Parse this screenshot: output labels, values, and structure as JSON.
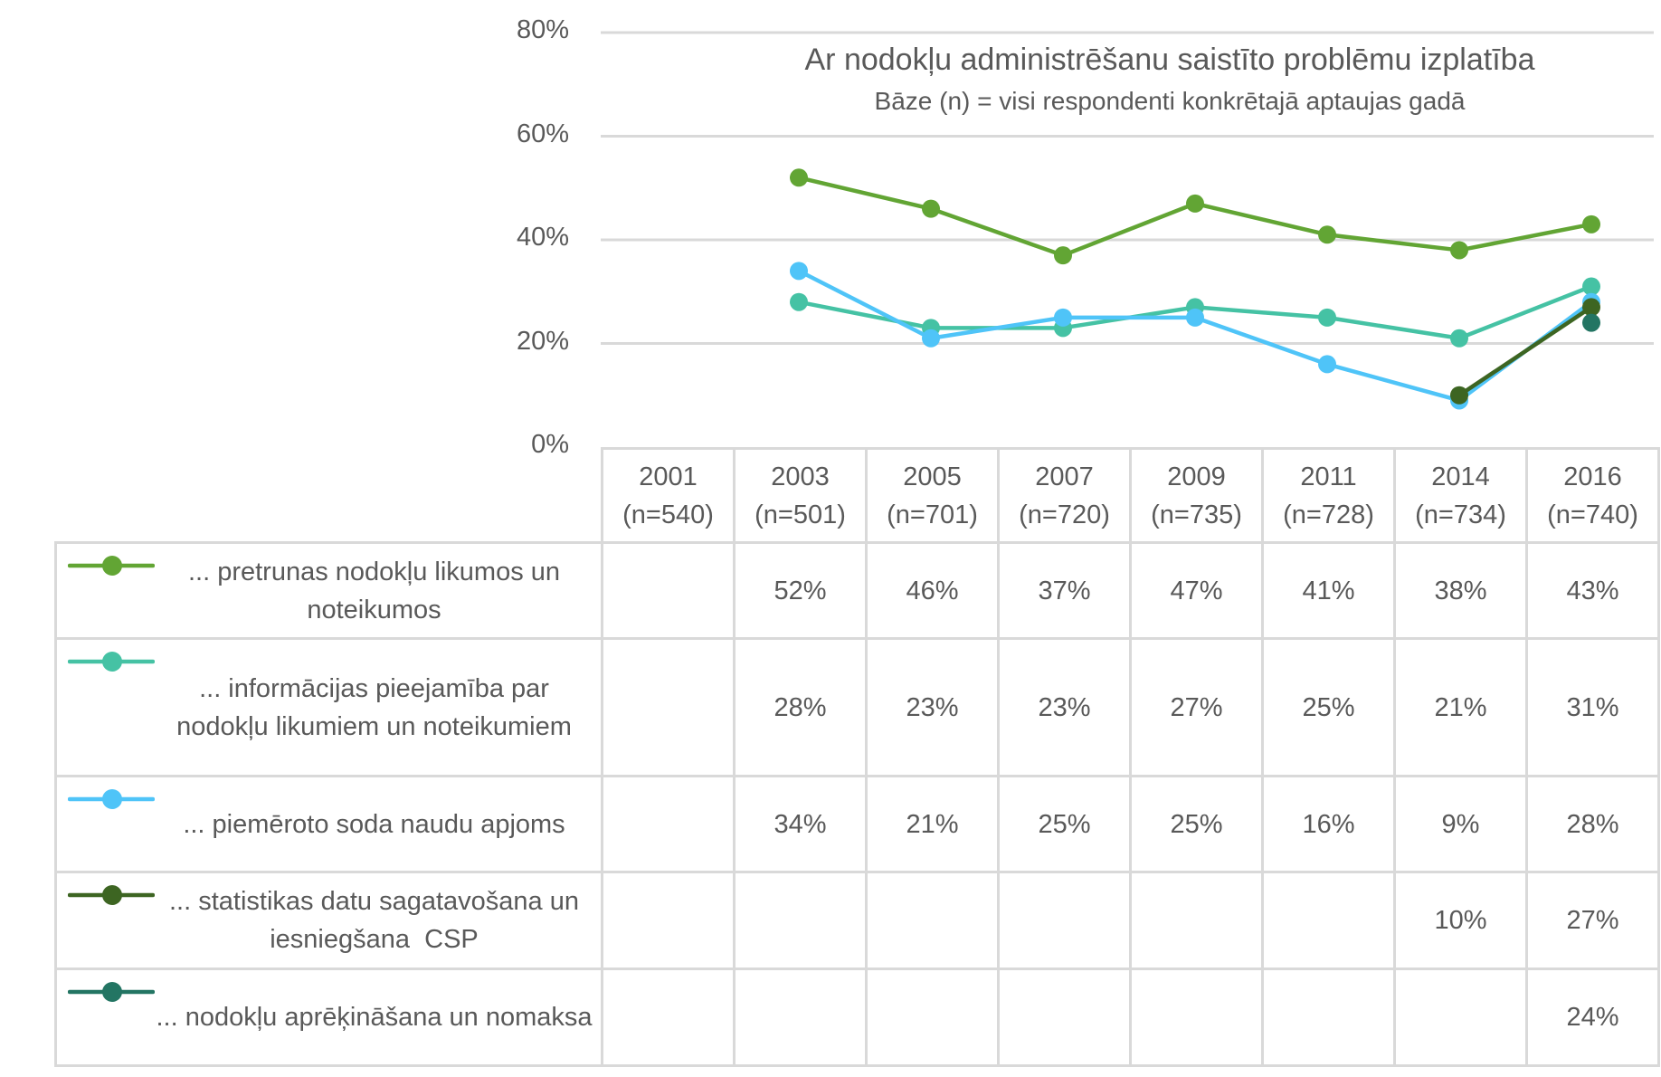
{
  "chart_data": {
    "type": "line",
    "title": "Ar nodokļu administrēšanu saistīto problēmu izplatība",
    "subtitle": "Bāze (n) = visi respondenti konkrētajā aptaujas gadā",
    "xlabel": "",
    "ylabel": "",
    "ylim": [
      0,
      80
    ],
    "yticks": [
      "0%",
      "20%",
      "40%",
      "60%",
      "80%"
    ],
    "ytick_values": [
      0,
      20,
      40,
      60,
      80
    ],
    "grid": true,
    "legend_placement": "data-table",
    "categories": [
      {
        "year": "2001",
        "n": "(n=540)"
      },
      {
        "year": "2003",
        "n": "(n=501)"
      },
      {
        "year": "2005",
        "n": "(n=701)"
      },
      {
        "year": "2007",
        "n": "(n=720)"
      },
      {
        "year": "2009",
        "n": "(n=735)"
      },
      {
        "year": "2011",
        "n": "(n=728)"
      },
      {
        "year": "2014",
        "n": "(n=734)"
      },
      {
        "year": "2016",
        "n": "(n=740)"
      }
    ],
    "series": [
      {
        "name": "... pretrunas nodokļu likumos un noteikumos",
        "color": "#62a534",
        "values": [
          null,
          52,
          46,
          37,
          47,
          41,
          38,
          43
        ],
        "labels": [
          "",
          "52%",
          "46%",
          "37%",
          "47%",
          "41%",
          "38%",
          "43%"
        ]
      },
      {
        "name": "... informācijas pieejamība par nodokļu likumiem un noteikumiem",
        "color": "#45c2a4",
        "values": [
          null,
          28,
          23,
          23,
          27,
          25,
          21,
          31
        ],
        "labels": [
          "",
          "28%",
          "23%",
          "23%",
          "27%",
          "25%",
          "21%",
          "31%"
        ]
      },
      {
        "name": "... piemēroto soda naudu apjoms",
        "color": "#4fc4f8",
        "values": [
          null,
          34,
          21,
          25,
          25,
          16,
          9,
          28
        ],
        "labels": [
          "",
          "34%",
          "21%",
          "25%",
          "25%",
          "16%",
          "9%",
          "28%"
        ]
      },
      {
        "name": "... statistikas datu sagatavošana un iesniegšana  CSP",
        "color": "#3d6522",
        "values": [
          null,
          null,
          null,
          null,
          null,
          null,
          10,
          27
        ],
        "labels": [
          "",
          "",
          "",
          "",
          "",
          "",
          "10%",
          "27%"
        ]
      },
      {
        "name": "... nodokļu aprēķināšana un nomaksa",
        "color": "#237563",
        "values": [
          null,
          null,
          null,
          null,
          null,
          null,
          null,
          24
        ],
        "labels": [
          "",
          "",
          "",
          "",
          "",
          "",
          "",
          "24%"
        ]
      }
    ]
  }
}
